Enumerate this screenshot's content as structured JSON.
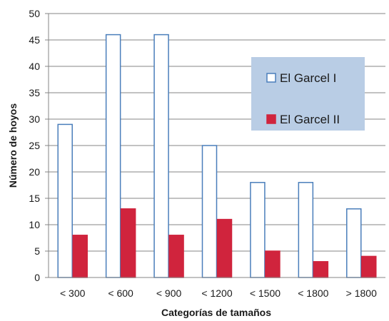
{
  "chart_data": {
    "type": "bar",
    "title": "",
    "xlabel": "Categorías de tamaños",
    "ylabel": "Número de hoyos",
    "ylim": [
      0,
      50
    ],
    "yticks": [
      0,
      5,
      10,
      15,
      20,
      25,
      30,
      35,
      40,
      45,
      50
    ],
    "categories": [
      "< 300",
      "< 600",
      "< 900",
      "< 1200",
      "< 1500",
      "< 1800",
      "> 1800"
    ],
    "grid": true,
    "legend_position": "top-right",
    "series": [
      {
        "name": "El Garcel I",
        "values": [
          29,
          46,
          46,
          25,
          18,
          18,
          13
        ],
        "fill": "#ffffff",
        "stroke": "#4a7ebb"
      },
      {
        "name": "El Garcel II",
        "values": [
          8,
          13,
          8,
          11,
          5,
          3,
          4
        ],
        "fill": "#d0243d",
        "stroke": "#d0243d"
      }
    ],
    "legend_background": "#b9cde5"
  }
}
